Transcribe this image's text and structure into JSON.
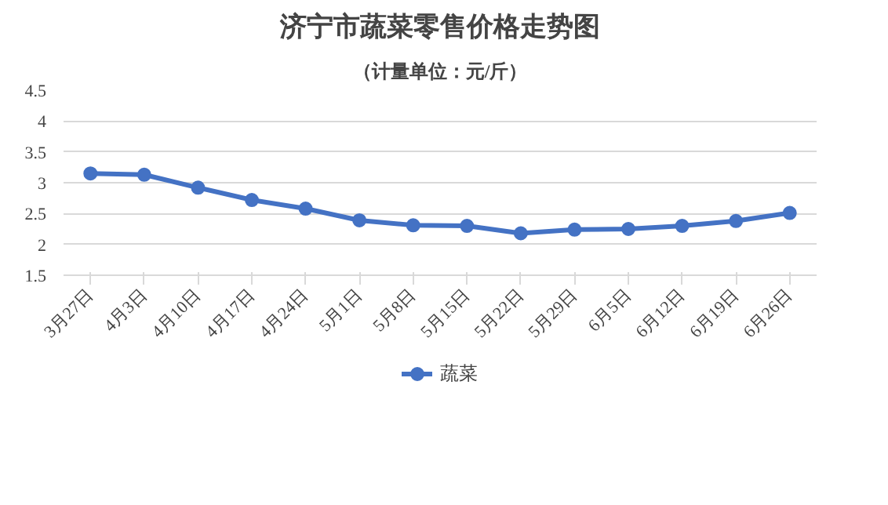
{
  "chart_data": {
    "type": "line",
    "title": "济宁市蔬菜零售价格走势图",
    "subtitle": "（计量单位：元/斤）",
    "categories": [
      "3月27日",
      "4月3日",
      "4月10日",
      "4月17日",
      "4月24日",
      "5月1日",
      "5月8日",
      "5月15日",
      "5月22日",
      "5月29日",
      "6月5日",
      "6月12日",
      "6月19日",
      "6月26日"
    ],
    "series": [
      {
        "name": "蔬菜",
        "color": "#4472c4",
        "values": [
          3.15,
          3.13,
          2.92,
          2.72,
          2.58,
          2.39,
          2.31,
          2.3,
          2.18,
          2.24,
          2.25,
          2.3,
          2.38,
          2.51
        ]
      }
    ],
    "ylim": [
      1.5,
      4.5
    ],
    "yticks": [
      1.5,
      2,
      2.5,
      3,
      3.5,
      4,
      4.5
    ],
    "grid": "y",
    "legend": "bottom",
    "marker": "circle",
    "line_style": "solid"
  }
}
